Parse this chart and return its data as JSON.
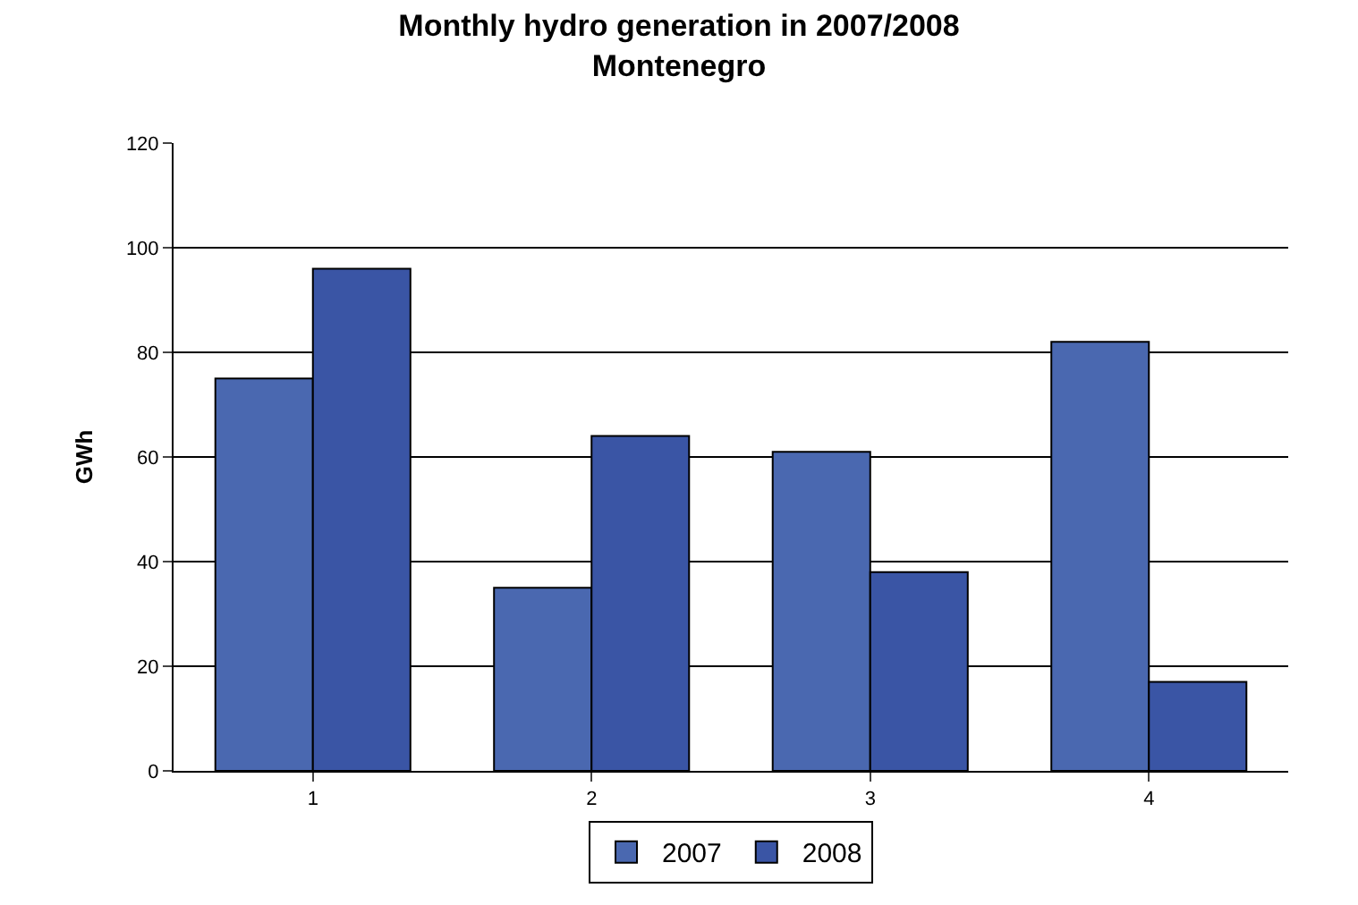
{
  "chart_data": {
    "type": "bar",
    "title": "Monthly hydro generation in 2007/2008\nMontenegro",
    "ylabel": "GWh",
    "categories": [
      "1",
      "2",
      "3",
      "4"
    ],
    "series": [
      {
        "name": "2007",
        "color": "#4a68b0",
        "values": [
          75,
          35,
          61,
          82
        ]
      },
      {
        "name": "2008",
        "color": "#3a55a5",
        "values": [
          96,
          64,
          38,
          17
        ]
      }
    ],
    "ylim": [
      0,
      120
    ],
    "yticks": [
      0,
      20,
      40,
      60,
      80,
      100,
      120
    ],
    "grid": "y",
    "legend": "bottom"
  }
}
